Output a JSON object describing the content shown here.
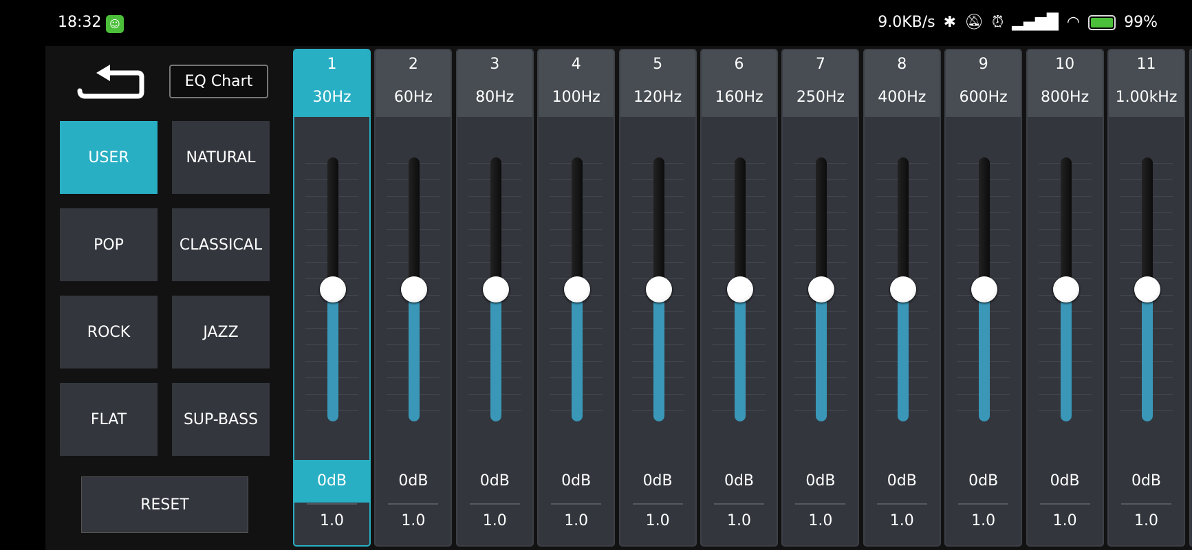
{
  "status_bar": {
    "time": "18:32",
    "app_icon": "green-cat-icon",
    "net_speed": "9.0KB/s",
    "icons": [
      "bluetooth-icon",
      "mute-icon",
      "alarm-icon",
      "signal-hd-icon",
      "wifi-6-icon",
      "battery-charging-icon"
    ],
    "battery": "99%"
  },
  "toolbar": {
    "back_icon": "back-return-icon",
    "eq_chart_label": "EQ Chart"
  },
  "presets": [
    {
      "label": "USER",
      "active": true
    },
    {
      "label": "NATURAL"
    },
    {
      "label": "POP"
    },
    {
      "label": "CLASSICAL"
    },
    {
      "label": "ROCK"
    },
    {
      "label": "JAZZ"
    },
    {
      "label": "FLAT"
    },
    {
      "label": "SUP-BASS"
    }
  ],
  "reset_label": "RESET",
  "colors": {
    "accent": "#29afc4",
    "fill": "#3a97b8",
    "channel_bg": "#33363d",
    "header_bg": "#474d52"
  },
  "channels": [
    {
      "num": "1",
      "freq": "30Hz",
      "gain": "0dB",
      "gain_db": 0,
      "q": "1.0",
      "selected": true
    },
    {
      "num": "2",
      "freq": "60Hz",
      "gain": "0dB",
      "gain_db": 0,
      "q": "1.0"
    },
    {
      "num": "3",
      "freq": "80Hz",
      "gain": "0dB",
      "gain_db": 0,
      "q": "1.0"
    },
    {
      "num": "4",
      "freq": "100Hz",
      "gain": "0dB",
      "gain_db": 0,
      "q": "1.0"
    },
    {
      "num": "5",
      "freq": "120Hz",
      "gain": "0dB",
      "gain_db": 0,
      "q": "1.0"
    },
    {
      "num": "6",
      "freq": "160Hz",
      "gain": "0dB",
      "gain_db": 0,
      "q": "1.0"
    },
    {
      "num": "7",
      "freq": "250Hz",
      "gain": "0dB",
      "gain_db": 0,
      "q": "1.0"
    },
    {
      "num": "8",
      "freq": "400Hz",
      "gain": "0dB",
      "gain_db": 0,
      "q": "1.0"
    },
    {
      "num": "9",
      "freq": "600Hz",
      "gain": "0dB",
      "gain_db": 0,
      "q": "1.0"
    },
    {
      "num": "10",
      "freq": "800Hz",
      "gain": "0dB",
      "gain_db": 0,
      "q": "1.0"
    },
    {
      "num": "11",
      "freq": "1.00kHz",
      "gain": "0dB",
      "gain_db": 0,
      "q": "1.0"
    }
  ]
}
